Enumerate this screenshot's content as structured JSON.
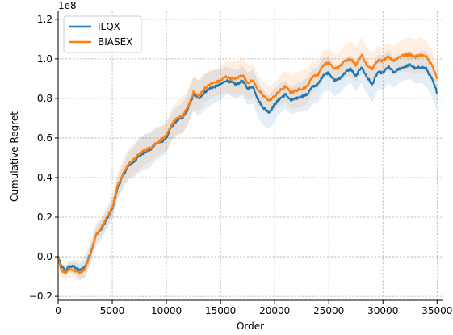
{
  "chart_data": {
    "type": "line",
    "title": "",
    "xlabel": "Order",
    "ylabel": "Cumulative Regret",
    "y_offset_label": "1e8",
    "xlim": [
      0,
      35500
    ],
    "ylim": [
      -0.22,
      1.24
    ],
    "x_ticks": [
      0,
      5000,
      10000,
      15000,
      20000,
      25000,
      30000,
      35000
    ],
    "x_tick_labels": [
      "0",
      "5000",
      "10000",
      "15000",
      "20000",
      "25000",
      "30000",
      "35000"
    ],
    "y_ticks": [
      -0.2,
      0.0,
      0.2,
      0.4,
      0.6,
      0.8,
      1.0,
      1.2
    ],
    "y_tick_labels": [
      "−0.2",
      "0.0",
      "0.2",
      "0.4",
      "0.6",
      "0.8",
      "1.0",
      "1.2"
    ],
    "grid": true,
    "legend_position": "top-left",
    "series": [
      {
        "name": "ILQX",
        "color": "#1f77b4",
        "x": [
          0,
          300,
          700,
          1000,
          1500,
          2000,
          2500,
          3000,
          3500,
          4000,
          4500,
          5000,
          5500,
          6000,
          6500,
          7000,
          7500,
          8000,
          8500,
          9000,
          9500,
          10000,
          10500,
          11000,
          11500,
          12000,
          12500,
          13000,
          13500,
          14000,
          14500,
          15000,
          15500,
          16000,
          16500,
          17000,
          17500,
          18000,
          18500,
          19000,
          19500,
          20000,
          20500,
          21000,
          21500,
          22000,
          22500,
          23000,
          23500,
          24000,
          24500,
          25000,
          25500,
          26000,
          26500,
          27000,
          27500,
          28000,
          28500,
          29000,
          29500,
          30000,
          30500,
          31000,
          31500,
          32000,
          32500,
          33000,
          33500,
          34000,
          34500,
          35000
        ],
        "values": [
          0.0,
          -0.05,
          -0.07,
          -0.05,
          -0.05,
          -0.07,
          -0.05,
          0.02,
          0.11,
          0.14,
          0.19,
          0.24,
          0.35,
          0.41,
          0.46,
          0.48,
          0.51,
          0.53,
          0.54,
          0.57,
          0.58,
          0.6,
          0.66,
          0.69,
          0.7,
          0.75,
          0.82,
          0.8,
          0.83,
          0.85,
          0.86,
          0.87,
          0.89,
          0.88,
          0.87,
          0.89,
          0.85,
          0.86,
          0.79,
          0.75,
          0.73,
          0.77,
          0.8,
          0.82,
          0.79,
          0.8,
          0.81,
          0.82,
          0.86,
          0.87,
          0.92,
          0.93,
          0.89,
          0.9,
          0.93,
          0.95,
          0.91,
          0.96,
          0.91,
          0.87,
          0.93,
          0.93,
          0.96,
          0.93,
          0.95,
          0.96,
          0.97,
          0.95,
          0.96,
          0.95,
          0.9,
          0.83
        ]
      },
      {
        "name": "BIASEX",
        "color": "#ff7f0e",
        "x": [
          0,
          300,
          700,
          1000,
          1500,
          2000,
          2500,
          3000,
          3500,
          4000,
          4500,
          5000,
          5500,
          6000,
          6500,
          7000,
          7500,
          8000,
          8500,
          9000,
          9500,
          10000,
          10500,
          11000,
          11500,
          12000,
          12500,
          13000,
          13500,
          14000,
          14500,
          15000,
          15500,
          16000,
          16500,
          17000,
          17500,
          18000,
          18500,
          19000,
          19500,
          20000,
          20500,
          21000,
          21500,
          22000,
          22500,
          23000,
          23500,
          24000,
          24500,
          25000,
          25500,
          26000,
          26500,
          27000,
          27500,
          28000,
          28500,
          29000,
          29500,
          30000,
          30500,
          31000,
          31500,
          32000,
          32500,
          33000,
          33500,
          34000,
          34500,
          35000
        ],
        "values": [
          0.0,
          -0.07,
          -0.08,
          -0.06,
          -0.07,
          -0.08,
          -0.06,
          0.02,
          0.11,
          0.15,
          0.2,
          0.25,
          0.36,
          0.42,
          0.47,
          0.49,
          0.52,
          0.54,
          0.55,
          0.57,
          0.59,
          0.61,
          0.67,
          0.7,
          0.71,
          0.76,
          0.83,
          0.81,
          0.85,
          0.87,
          0.88,
          0.89,
          0.91,
          0.9,
          0.9,
          0.92,
          0.88,
          0.89,
          0.84,
          0.81,
          0.79,
          0.81,
          0.84,
          0.86,
          0.83,
          0.84,
          0.85,
          0.86,
          0.91,
          0.92,
          0.97,
          0.98,
          0.95,
          0.96,
          0.99,
          1.0,
          0.97,
          1.02,
          0.97,
          0.95,
          0.99,
          0.99,
          1.01,
          0.99,
          1.01,
          1.02,
          1.02,
          1.01,
          1.02,
          1.01,
          0.97,
          0.9
        ]
      }
    ]
  }
}
